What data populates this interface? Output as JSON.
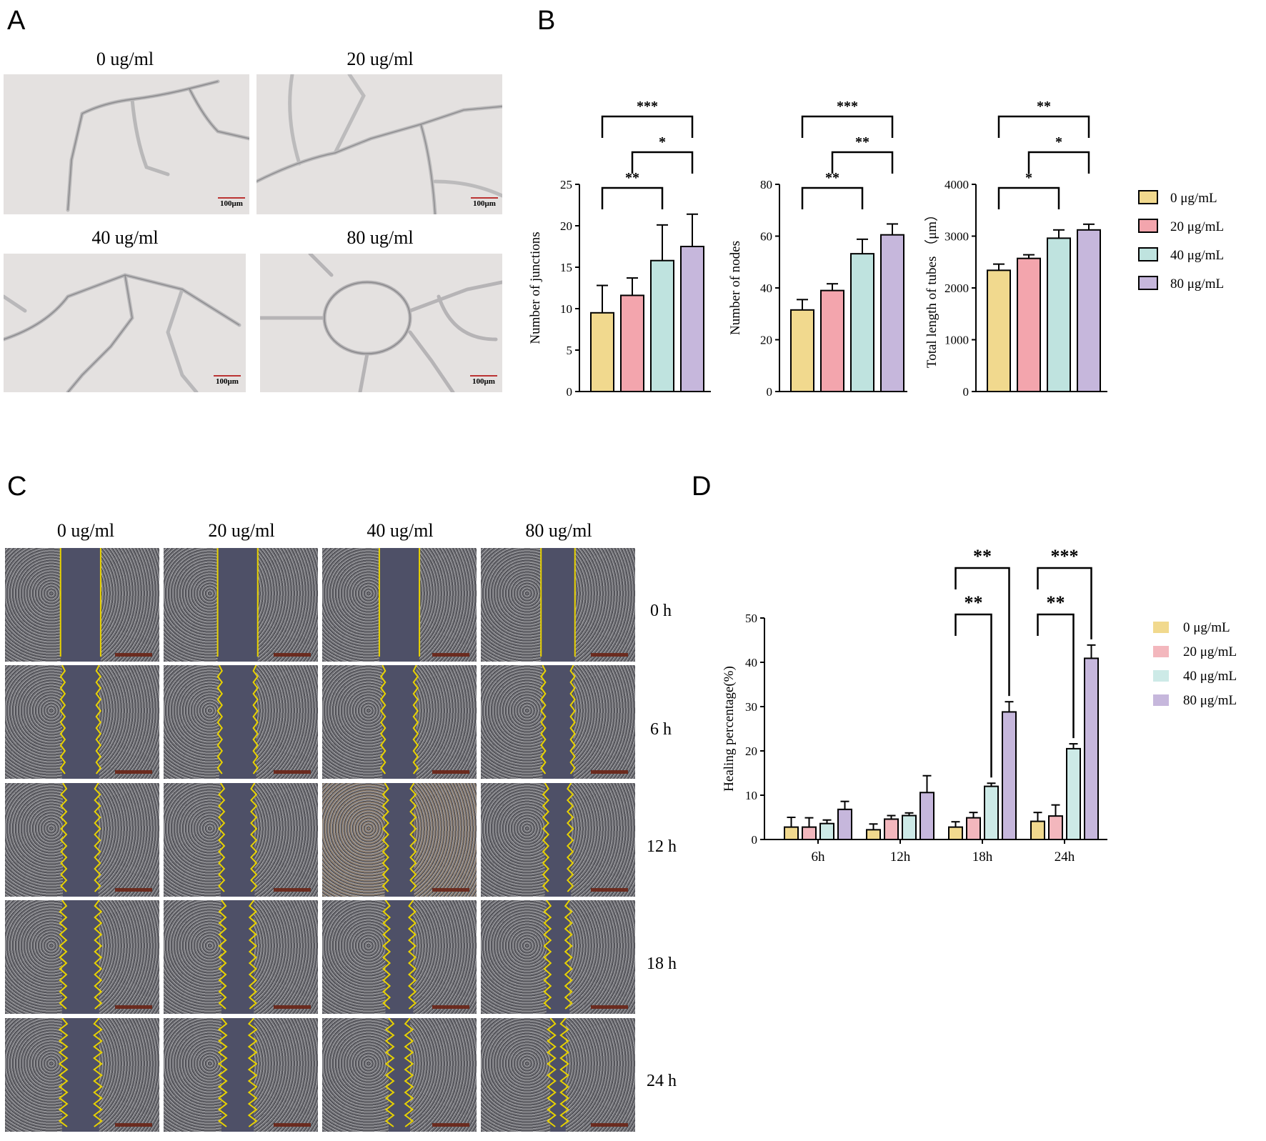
{
  "panels": {
    "A": "A",
    "B": "B",
    "C": "C",
    "D": "D"
  },
  "panel_a": {
    "labels": [
      "0 ug/ml",
      "20 ug/ml",
      "40 ug/ml",
      "80 ug/ml"
    ],
    "scale": "100μm"
  },
  "panel_c": {
    "labels": [
      "0 ug/ml",
      "20 ug/ml",
      "40 ug/ml",
      "80 ug/ml"
    ],
    "times": [
      "0 h",
      "6 h",
      "12 h",
      "18 h",
      "24 h"
    ]
  },
  "chart_data": [
    {
      "type": "bar",
      "ylabel": "Number of junctions",
      "ylim": [
        0,
        25
      ],
      "ticks": [
        0,
        5,
        10,
        15,
        20,
        25
      ],
      "series": [
        {
          "name": "0 μg/mL",
          "value": 9.5,
          "err": 3.3
        },
        {
          "name": "20 μg/mL",
          "value": 11.6,
          "err": 2.1
        },
        {
          "name": "40 μg/mL",
          "value": 15.8,
          "err": 4.3
        },
        {
          "name": "80 μg/mL",
          "value": 17.5,
          "err": 3.9
        }
      ],
      "significance": [
        {
          "from": 0,
          "to": 2,
          "label": "**"
        },
        {
          "from": 1,
          "to": 3,
          "label": "*"
        },
        {
          "from": 0,
          "to": 3,
          "label": "***"
        }
      ]
    },
    {
      "type": "bar",
      "ylabel": "Number of nodes",
      "ylim": [
        0,
        80
      ],
      "ticks": [
        0,
        20,
        40,
        60,
        80
      ],
      "series": [
        {
          "name": "0 μg/mL",
          "value": 31.5,
          "err": 4.0
        },
        {
          "name": "20 μg/mL",
          "value": 39.0,
          "err": 2.6
        },
        {
          "name": "40 μg/mL",
          "value": 53.2,
          "err": 5.6
        },
        {
          "name": "80 μg/mL",
          "value": 60.5,
          "err": 4.2
        }
      ],
      "significance": [
        {
          "from": 0,
          "to": 2,
          "label": "**"
        },
        {
          "from": 1,
          "to": 3,
          "label": "**"
        },
        {
          "from": 0,
          "to": 3,
          "label": "***"
        }
      ]
    },
    {
      "type": "bar",
      "ylabel": "Total length of tubes （μm）",
      "ylim": [
        0,
        4000
      ],
      "ticks": [
        0,
        1000,
        2000,
        3000,
        4000
      ],
      "series": [
        {
          "name": "0 μg/mL",
          "value": 2340,
          "err": 120
        },
        {
          "name": "20 μg/mL",
          "value": 2570,
          "err": 70
        },
        {
          "name": "40 μg/mL",
          "value": 2960,
          "err": 160
        },
        {
          "name": "80 μg/mL",
          "value": 3120,
          "err": 110
        }
      ],
      "significance": [
        {
          "from": 0,
          "to": 2,
          "label": "*"
        },
        {
          "from": 1,
          "to": 3,
          "label": "*"
        },
        {
          "from": 0,
          "to": 3,
          "label": "**"
        }
      ]
    },
    {
      "type": "bar",
      "ylabel": "Healing percentage(%)",
      "ylim": [
        0,
        50
      ],
      "ticks": [
        0,
        10,
        20,
        30,
        40,
        50
      ],
      "categories": [
        "6h",
        "12h",
        "18h",
        "24h"
      ],
      "series": [
        {
          "name": "0 μg/mL",
          "values": [
            2.8,
            2.2,
            2.8,
            4.1
          ],
          "err": [
            2.2,
            1.3,
            1.2,
            2.0
          ]
        },
        {
          "name": "20 μg/mL",
          "values": [
            2.8,
            4.6,
            4.9,
            5.3
          ],
          "err": [
            2.1,
            0.8,
            1.2,
            2.5
          ]
        },
        {
          "name": "40 μg/mL",
          "values": [
            3.6,
            5.4,
            12.0,
            20.5
          ],
          "err": [
            0.8,
            0.6,
            0.7,
            1.1
          ]
        },
        {
          "name": "80 μg/mL",
          "values": [
            6.8,
            10.6,
            28.8,
            40.9
          ],
          "err": [
            1.8,
            3.8,
            2.3,
            3.0
          ]
        }
      ],
      "significance": [
        {
          "group": 2,
          "from": 0,
          "to": 2,
          "label": "**"
        },
        {
          "group": 2,
          "from": 0,
          "to": 3,
          "label": "**"
        },
        {
          "group": 3,
          "from": 0,
          "to": 2,
          "label": "**"
        },
        {
          "group": 3,
          "from": 0,
          "to": 3,
          "label": "***"
        }
      ]
    }
  ],
  "legend": [
    "0 μg/mL",
    "20 μg/mL",
    "40 μg/mL",
    "80 μg/mL"
  ],
  "colors": {
    "legend_b": [
      "#f1d98e",
      "#f3a5ad",
      "#bfe3df",
      "#c6b7dc"
    ],
    "legend_d": [
      "#f1d98e",
      "#f3b7bd",
      "#cdeae7",
      "#c6b7dc"
    ],
    "wound_bg": "#4e5067",
    "wound_edge": "#e8d200",
    "cells": "#6f6f74"
  }
}
